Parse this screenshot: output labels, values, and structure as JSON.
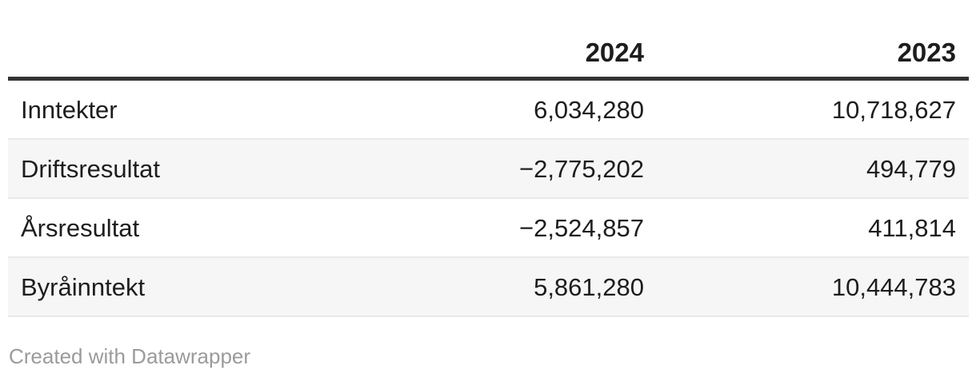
{
  "table": {
    "columns": [
      {
        "label": ""
      },
      {
        "label": "2024"
      },
      {
        "label": "2023"
      }
    ],
    "rows": [
      {
        "label": "Inntekter",
        "values": [
          "6,034,280",
          "10,718,627"
        ]
      },
      {
        "label": "Driftsresultat",
        "values": [
          "−2,775,202",
          "494,779"
        ]
      },
      {
        "label": "Årsresultat",
        "values": [
          "−2,524,857",
          "411,814"
        ]
      },
      {
        "label": "Byråinntekt",
        "values": [
          "5,861,280",
          "10,444,783"
        ]
      }
    ]
  },
  "footer": {
    "credit": "Created with Datawrapper"
  },
  "colors": {
    "header_rule": "#333333",
    "row_separator": "#e9e9e9",
    "stripe_background": "#f6f6f6",
    "text": "#1d1d1d",
    "credit_text": "#9b9b9b"
  },
  "chart_data": {
    "type": "table",
    "title": "",
    "categories": [
      "Inntekter",
      "Driftsresultat",
      "Årsresultat",
      "Byråinntekt"
    ],
    "series": [
      {
        "name": "2024",
        "values": [
          6034280,
          -2775202,
          -2524857,
          5861280
        ]
      },
      {
        "name": "2023",
        "values": [
          10718627,
          494779,
          411814,
          10444783
        ]
      }
    ],
    "notes": "Created with Datawrapper"
  }
}
